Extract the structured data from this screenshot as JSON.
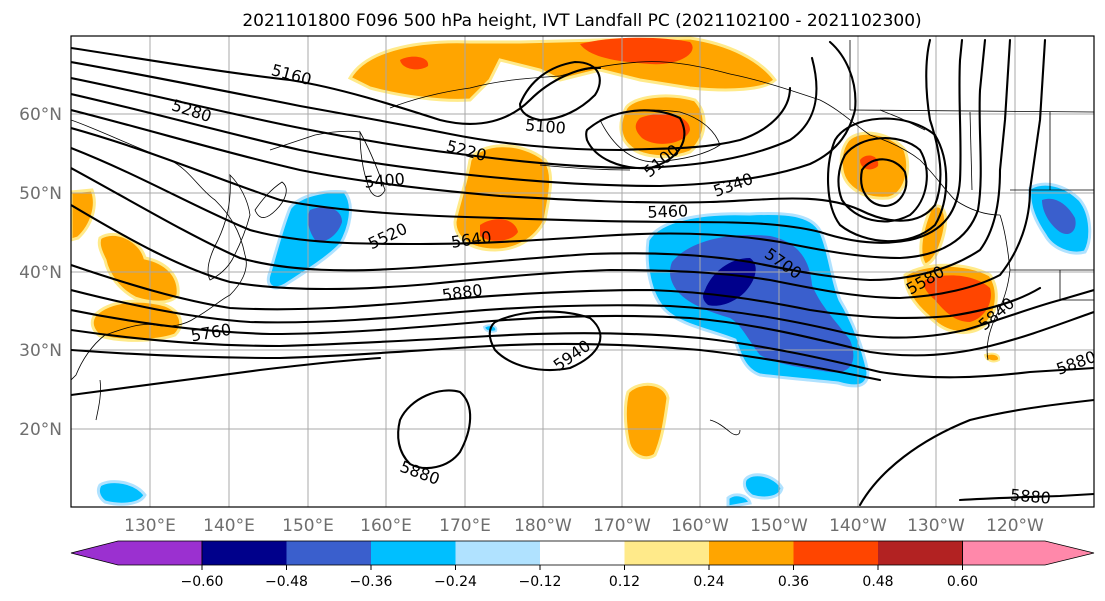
{
  "title": "2021101800 F096 500 hPa height, IVT Landfall PC (2021102100 - 2021102300)",
  "lat_labels": [
    "60°N",
    "50°N",
    "40°N",
    "30°N",
    "20°N"
  ],
  "lon_labels": [
    "130°E",
    "140°E",
    "150°E",
    "160°E",
    "170°E",
    "180°W",
    "170°W",
    "160°W",
    "150°W",
    "140°W",
    "130°W",
    "120°W"
  ],
  "contour_labels": [
    "5160",
    "5280",
    "5220",
    "5100",
    "5100",
    "5400",
    "5340",
    "5460",
    "5520",
    "5640",
    "5700",
    "5580",
    "5880",
    "5840",
    "5760",
    "5940",
    "5880",
    "5880",
    "5880"
  ],
  "colorbar": {
    "ticks": [
      "−0.60",
      "−0.48",
      "−0.36",
      "−0.24",
      "−0.12",
      "0.12",
      "0.24",
      "0.36",
      "0.48",
      "0.60"
    ],
    "colors": [
      "#9b30d0",
      "#00008b",
      "#3a5fcd",
      "#00bfff",
      "#b0e2ff",
      "#ffffff",
      "#ffea8a",
      "#ffa500",
      "#ff4500",
      "#b22222",
      "#ff88aa"
    ]
  },
  "fill_colors": {
    "dark_blue": "#00008b",
    "medium_blue": "#3a5fcd",
    "light_blue": "#00bfff",
    "pale_blue": "#b0e2ff",
    "pale_yellow": "#ffea8a",
    "orange": "#ffa500",
    "red_orange": "#ff4500"
  }
}
